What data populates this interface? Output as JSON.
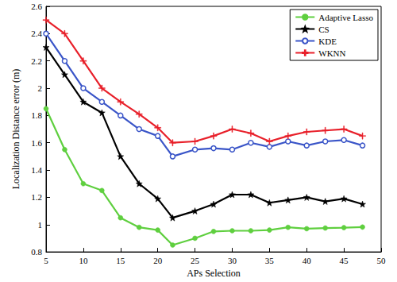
{
  "chart_data": {
    "type": "line",
    "x_label": "APs Selection",
    "y_label": "Localization Distance error (m)",
    "x": [
      5,
      7.5,
      10,
      12.5,
      15,
      17.5,
      20,
      22,
      25,
      27.5,
      30,
      32.5,
      35,
      37.5,
      40,
      42.5,
      45,
      47.5
    ],
    "series": [
      {
        "name": "Adaptive Lasso",
        "color": "#5fcf3f",
        "marker": "circle",
        "values": [
          1.85,
          1.55,
          1.3,
          1.25,
          1.05,
          0.98,
          0.96,
          0.85,
          0.9,
          0.95,
          0.955,
          0.955,
          0.96,
          0.98,
          0.97,
          0.975,
          0.978,
          0.982
        ]
      },
      {
        "name": "CS",
        "color": "#000000",
        "marker": "star",
        "values": [
          2.3,
          2.1,
          1.9,
          1.82,
          1.5,
          1.3,
          1.19,
          1.05,
          1.1,
          1.15,
          1.22,
          1.22,
          1.16,
          1.18,
          1.2,
          1.17,
          1.19,
          1.15
        ]
      },
      {
        "name": "KDE",
        "color": "#3a55c8",
        "marker": "open-circle",
        "values": [
          2.4,
          2.2,
          2.0,
          1.9,
          1.8,
          1.7,
          1.65,
          1.5,
          1.55,
          1.56,
          1.55,
          1.6,
          1.57,
          1.61,
          1.58,
          1.61,
          1.62,
          1.58
        ]
      },
      {
        "name": "WKNN",
        "color": "#e8202a",
        "marker": "plus",
        "values": [
          2.5,
          2.4,
          2.2,
          2.0,
          1.9,
          1.81,
          1.71,
          1.6,
          1.61,
          1.65,
          1.7,
          1.67,
          1.61,
          1.65,
          1.68,
          1.69,
          1.7,
          1.65
        ]
      }
    ],
    "xlim": [
      5,
      50
    ],
    "xticks": [
      5,
      10,
      15,
      20,
      25,
      30,
      35,
      40,
      45,
      50
    ],
    "ylim": [
      0.8,
      2.6
    ],
    "yticks": [
      0.8,
      1,
      1.2,
      1.4,
      1.6,
      1.8,
      2,
      2.2,
      2.4,
      2.6
    ],
    "grid": false,
    "legend": "upper right"
  }
}
